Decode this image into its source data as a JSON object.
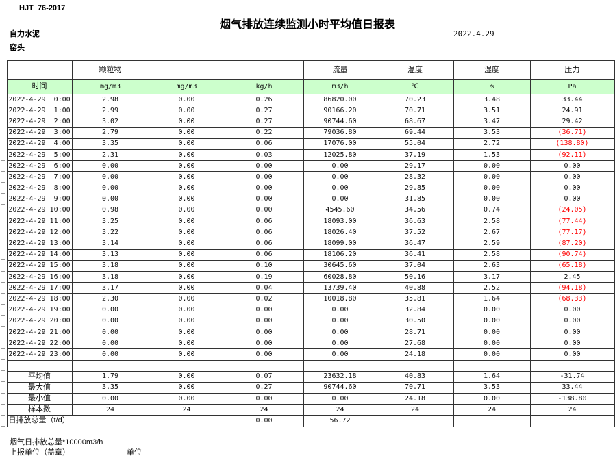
{
  "header": {
    "standard": "HJT  76-2017",
    "title": "烟气排放连续监测小时平均值日报表",
    "company": "自力水泥",
    "station": "窑头",
    "date": "2022.4.29"
  },
  "table": {
    "group_headers": [
      "",
      "颗粒物",
      "",
      "",
      "流量",
      "温度",
      "湿度",
      "压力"
    ],
    "unit_row": [
      "时间",
      "mg/m3",
      "mg/m3",
      "kg/h",
      "m3/h",
      "℃",
      "%",
      "Pa"
    ],
    "rows": [
      {
        "time": "2022-4-29  0:00",
        "values": [
          "2.98",
          "0.00",
          "0.26",
          "86820.00",
          "70.23",
          "3.48",
          "33.44"
        ]
      },
      {
        "time": "2022-4-29  1:00",
        "values": [
          "2.99",
          "0.00",
          "0.27",
          "90166.20",
          "70.71",
          "3.51",
          "24.91"
        ]
      },
      {
        "time": "2022-4-29  2:00",
        "values": [
          "3.02",
          "0.00",
          "0.27",
          "90744.60",
          "68.67",
          "3.47",
          "29.42"
        ]
      },
      {
        "time": "2022-4-29  3:00",
        "values": [
          "2.79",
          "0.00",
          "0.22",
          "79036.80",
          "69.44",
          "3.53",
          "(36.71)"
        ]
      },
      {
        "time": "2022-4-29  4:00",
        "values": [
          "3.35",
          "0.00",
          "0.06",
          "17076.00",
          "55.04",
          "2.72",
          "(138.80)"
        ]
      },
      {
        "time": "2022-4-29  5:00",
        "values": [
          "2.31",
          "0.00",
          "0.03",
          "12025.80",
          "37.19",
          "1.53",
          "(92.11)"
        ]
      },
      {
        "time": "2022-4-29  6:00",
        "values": [
          "0.00",
          "0.00",
          "0.00",
          "0.00",
          "29.17",
          "0.00",
          "0.00"
        ]
      },
      {
        "time": "2022-4-29  7:00",
        "values": [
          "0.00",
          "0.00",
          "0.00",
          "0.00",
          "28.32",
          "0.00",
          "0.00"
        ]
      },
      {
        "time": "2022-4-29  8:00",
        "values": [
          "0.00",
          "0.00",
          "0.00",
          "0.00",
          "29.85",
          "0.00",
          "0.00"
        ]
      },
      {
        "time": "2022-4-29  9:00",
        "values": [
          "0.00",
          "0.00",
          "0.00",
          "0.00",
          "31.85",
          "0.00",
          "0.00"
        ]
      },
      {
        "time": "2022-4-29 10:00",
        "values": [
          "0.98",
          "0.00",
          "0.00",
          "4545.60",
          "34.56",
          "0.74",
          "(24.05)"
        ]
      },
      {
        "time": "2022-4-29 11:00",
        "values": [
          "3.25",
          "0.00",
          "0.06",
          "18093.00",
          "36.63",
          "2.58",
          "(77.44)"
        ]
      },
      {
        "time": "2022-4-29 12:00",
        "values": [
          "3.22",
          "0.00",
          "0.06",
          "18026.40",
          "37.52",
          "2.67",
          "(77.17)"
        ]
      },
      {
        "time": "2022-4-29 13:00",
        "values": [
          "3.14",
          "0.00",
          "0.06",
          "18099.00",
          "36.47",
          "2.59",
          "(87.20)"
        ]
      },
      {
        "time": "2022-4-29 14:00",
        "values": [
          "3.13",
          "0.00",
          "0.06",
          "18106.20",
          "36.41",
          "2.58",
          "(90.74)"
        ]
      },
      {
        "time": "2022-4-29 15:00",
        "values": [
          "3.18",
          "0.00",
          "0.10",
          "30645.60",
          "37.04",
          "2.63",
          "(65.18)"
        ]
      },
      {
        "time": "2022-4-29 16:00",
        "values": [
          "3.18",
          "0.00",
          "0.19",
          "60028.80",
          "50.16",
          "3.17",
          "2.45"
        ]
      },
      {
        "time": "2022-4-29 17:00",
        "values": [
          "3.17",
          "0.00",
          "0.04",
          "13739.40",
          "40.88",
          "2.52",
          "(94.18)"
        ]
      },
      {
        "time": "2022-4-29 18:00",
        "values": [
          "2.30",
          "0.00",
          "0.02",
          "10018.80",
          "35.81",
          "1.64",
          "(68.33)"
        ]
      },
      {
        "time": "2022-4-29 19:00",
        "values": [
          "0.00",
          "0.00",
          "0.00",
          "0.00",
          "32.84",
          "0.00",
          "0.00"
        ]
      },
      {
        "time": "2022-4-29 20:00",
        "values": [
          "0.00",
          "0.00",
          "0.00",
          "0.00",
          "30.50",
          "0.00",
          "0.00"
        ]
      },
      {
        "time": "2022-4-29 21:00",
        "values": [
          "0.00",
          "0.00",
          "0.00",
          "0.00",
          "28.71",
          "0.00",
          "0.00"
        ]
      },
      {
        "time": "2022-4-29 22:00",
        "values": [
          "0.00",
          "0.00",
          "0.00",
          "0.00",
          "27.68",
          "0.00",
          "0.00"
        ]
      },
      {
        "time": "2022-4-29 23:00",
        "values": [
          "0.00",
          "0.00",
          "0.00",
          "0.00",
          "24.18",
          "0.00",
          "0.00"
        ]
      }
    ],
    "summary": [
      {
        "label": "平均值",
        "values": [
          "1.79",
          "0.00",
          "0.07",
          "23632.18",
          "40.83",
          "1.64",
          "-31.74"
        ]
      },
      {
        "label": "最大值",
        "values": [
          "3.35",
          "0.00",
          "0.27",
          "90744.60",
          "70.71",
          "3.53",
          "33.44"
        ]
      },
      {
        "label": "最小值",
        "values": [
          "0.00",
          "0.00",
          "0.00",
          "0.00",
          "24.18",
          "0.00",
          "-138.80"
        ]
      },
      {
        "label": "样本数",
        "values": [
          "24",
          "24",
          "24",
          "24",
          "24",
          "24",
          "24"
        ]
      }
    ],
    "daily_total": {
      "label": "日排放总量（t/d）",
      "values": [
        "",
        "0.00",
        "56.72",
        "",
        "",
        ""
      ]
    }
  },
  "footer": {
    "note": "烟气日排放总量*10000m3/h",
    "report_unit_label": "上报单位（盖章）",
    "unit_label": "单位"
  },
  "colors": {
    "header_green": "#ccffcc",
    "negative_red": "#ff0000"
  }
}
